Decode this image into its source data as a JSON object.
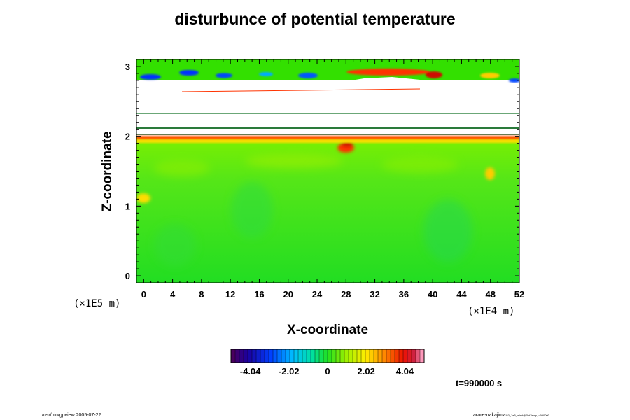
{
  "chart_data": {
    "type": "heatmap",
    "title": "disturbunce of potential temperature",
    "xlabel": "X-coordinate",
    "ylabel": "Z-coordinate",
    "x_unit": "(×1E4 m)",
    "y_unit": "(×1E5 m)",
    "xlim": [
      -1,
      52
    ],
    "ylim": [
      -0.1,
      3.1
    ],
    "x_ticks": [
      0,
      4,
      8,
      12,
      16,
      20,
      24,
      28,
      32,
      36,
      40,
      44,
      48,
      52
    ],
    "y_ticks": [
      0,
      1,
      2,
      3
    ],
    "colorbar": {
      "range": [
        -5.05,
        5.05
      ],
      "ticks": [
        -4.04,
        -2.02,
        0,
        2.02,
        4.04
      ],
      "tick_labels": [
        "-4.04",
        "-2.02",
        "0",
        "2.02",
        "4.04"
      ]
    },
    "time_label": "t=990000 s"
  },
  "footer": {
    "left": "/usr/bin/gpview 2005-07-22",
    "right_main": "arare-nakajima",
    "right_small": "C0_1e5_wind@PotTemp,t=990000"
  },
  "colors": {
    "background_field": "#22dd22",
    "warm": "#ff2200",
    "cool": "#0022ee"
  }
}
